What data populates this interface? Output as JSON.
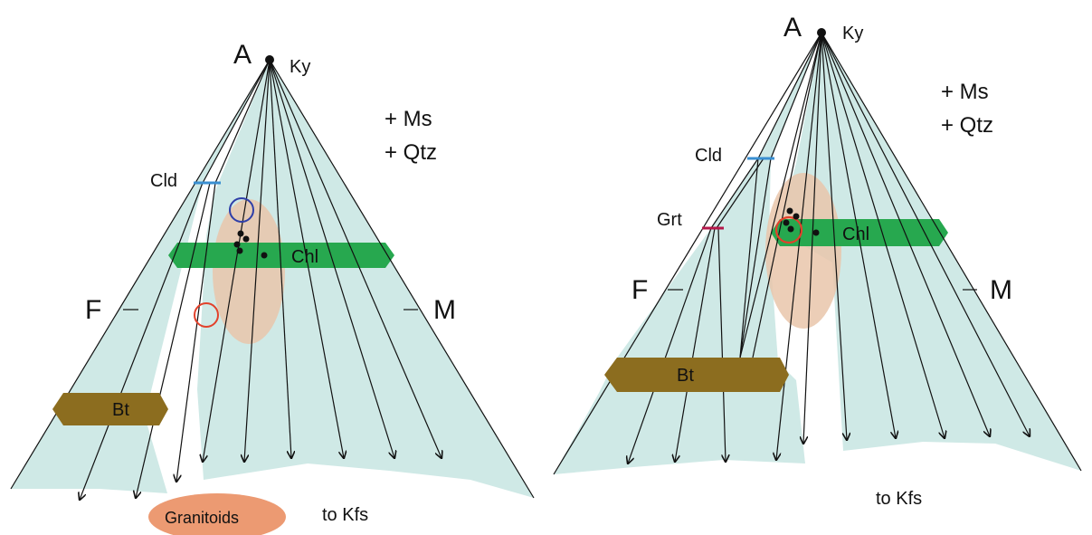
{
  "left_panel": {
    "apex_label": "A",
    "apex_mineral": "Ky",
    "assemblage_line1": "+ Ms",
    "assemblage_line2": "+ Qtz",
    "label_f": "F",
    "label_m": "M",
    "label_cld": "Cld",
    "label_chl": "Chl",
    "label_bt": "Bt",
    "label_granitoids": "Granitoids",
    "label_to_kfs": "to Kfs"
  },
  "right_panel": {
    "apex_label": "A",
    "apex_mineral": "Ky",
    "assemblage_line1": "+ Ms",
    "assemblage_line2": "+ Qtz",
    "label_f": "F",
    "label_m": "M",
    "label_cld": "Cld",
    "label_grt": "Grt",
    "label_chl": "Chl",
    "label_bt": "Bt",
    "label_to_kfs": "to Kfs"
  },
  "colors": {
    "field": "#cfe9e6",
    "chl_bar": "#27a84f",
    "bt_bar": "#8c6d1f",
    "sample_zone": "#e9c6aa",
    "granitoids": "#ec9a72",
    "cld_tick": "#3a8fd1",
    "grt_tick": "#b5174a",
    "blue_circle": "#2f3fa8",
    "red_circle": "#e2412b"
  }
}
